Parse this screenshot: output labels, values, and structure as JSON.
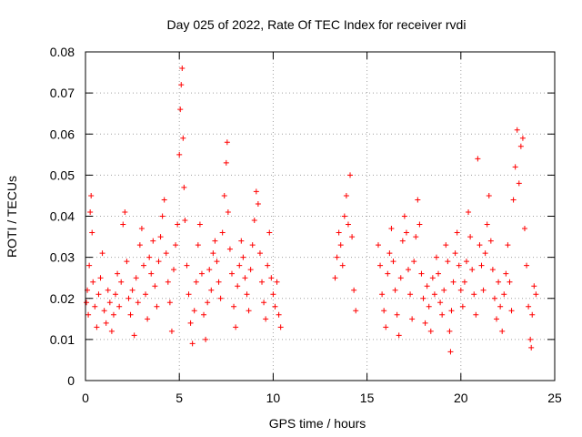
{
  "chart_data": {
    "type": "scatter",
    "title": "Day 025 of 2022, Rate Of TEC Index for receiver rvdi",
    "xlabel": "GPS time / hours",
    "ylabel": "ROTI / TECUs",
    "xlim": [
      0,
      25
    ],
    "ylim": [
      0,
      0.08
    ],
    "xticks": [
      0,
      5,
      10,
      15,
      20,
      25
    ],
    "yticks": [
      0,
      0.01,
      0.02,
      0.03,
      0.04,
      0.05,
      0.06,
      0.07,
      0.08
    ],
    "xtick_labels": [
      "0",
      "5",
      "10",
      "15",
      "20",
      "25"
    ],
    "ytick_labels": [
      "0",
      "0.01",
      "0.02",
      "0.03",
      "0.04",
      "0.05",
      "0.06",
      "0.07",
      "0.08"
    ],
    "grid": true,
    "marker": "plus",
    "color": "#ff0000",
    "series": [
      {
        "values": [
          [
            0.05,
            0.019
          ],
          [
            0.1,
            0.022
          ],
          [
            0.15,
            0.016
          ],
          [
            0.2,
            0.028
          ],
          [
            0.25,
            0.041
          ],
          [
            0.3,
            0.045
          ],
          [
            0.35,
            0.036
          ],
          [
            0.4,
            0.024
          ],
          [
            0.5,
            0.018
          ],
          [
            0.6,
            0.013
          ],
          [
            0.7,
            0.021
          ],
          [
            0.8,
            0.025
          ],
          [
            0.9,
            0.031
          ],
          [
            1.0,
            0.017
          ],
          [
            1.1,
            0.014
          ],
          [
            1.2,
            0.022
          ],
          [
            1.3,
            0.019
          ],
          [
            1.4,
            0.012
          ],
          [
            1.5,
            0.016
          ],
          [
            1.6,
            0.021
          ],
          [
            1.7,
            0.026
          ],
          [
            1.8,
            0.018
          ],
          [
            1.9,
            0.024
          ],
          [
            2.0,
            0.038
          ],
          [
            2.1,
            0.041
          ],
          [
            2.2,
            0.029
          ],
          [
            2.3,
            0.02
          ],
          [
            2.4,
            0.016
          ],
          [
            2.5,
            0.022
          ],
          [
            2.6,
            0.011
          ],
          [
            2.7,
            0.025
          ],
          [
            2.8,
            0.019
          ],
          [
            2.9,
            0.033
          ],
          [
            3.0,
            0.037
          ],
          [
            3.1,
            0.028
          ],
          [
            3.2,
            0.021
          ],
          [
            3.3,
            0.015
          ],
          [
            3.4,
            0.03
          ],
          [
            3.5,
            0.026
          ],
          [
            3.6,
            0.034
          ],
          [
            3.7,
            0.023
          ],
          [
            3.8,
            0.018
          ],
          [
            3.9,
            0.029
          ],
          [
            4.0,
            0.035
          ],
          [
            4.1,
            0.04
          ],
          [
            4.2,
            0.044
          ],
          [
            4.3,
            0.031
          ],
          [
            4.4,
            0.024
          ],
          [
            4.5,
            0.019
          ],
          [
            4.6,
            0.012
          ],
          [
            4.7,
            0.027
          ],
          [
            4.8,
            0.033
          ],
          [
            4.9,
            0.038
          ],
          [
            5.0,
            0.055
          ],
          [
            5.05,
            0.066
          ],
          [
            5.1,
            0.072
          ],
          [
            5.15,
            0.076
          ],
          [
            5.2,
            0.059
          ],
          [
            5.25,
            0.047
          ],
          [
            5.3,
            0.039
          ],
          [
            5.4,
            0.028
          ],
          [
            5.5,
            0.021
          ],
          [
            5.6,
            0.014
          ],
          [
            5.7,
            0.009
          ],
          [
            5.8,
            0.017
          ],
          [
            5.9,
            0.024
          ],
          [
            6.0,
            0.033
          ],
          [
            6.1,
            0.038
          ],
          [
            6.2,
            0.026
          ],
          [
            6.3,
            0.016
          ],
          [
            6.4,
            0.01
          ],
          [
            6.5,
            0.019
          ],
          [
            6.6,
            0.027
          ],
          [
            6.7,
            0.022
          ],
          [
            6.8,
            0.031
          ],
          [
            6.9,
            0.034
          ],
          [
            7.0,
            0.029
          ],
          [
            7.1,
            0.024
          ],
          [
            7.2,
            0.02
          ],
          [
            7.3,
            0.036
          ],
          [
            7.4,
            0.045
          ],
          [
            7.5,
            0.053
          ],
          [
            7.55,
            0.058
          ],
          [
            7.6,
            0.041
          ],
          [
            7.7,
            0.032
          ],
          [
            7.8,
            0.026
          ],
          [
            7.9,
            0.018
          ],
          [
            8.0,
            0.013
          ],
          [
            8.1,
            0.023
          ],
          [
            8.2,
            0.028
          ],
          [
            8.3,
            0.034
          ],
          [
            8.4,
            0.03
          ],
          [
            8.5,
            0.025
          ],
          [
            8.6,
            0.021
          ],
          [
            8.7,
            0.017
          ],
          [
            8.8,
            0.027
          ],
          [
            8.9,
            0.033
          ],
          [
            9.0,
            0.039
          ],
          [
            9.1,
            0.046
          ],
          [
            9.2,
            0.043
          ],
          [
            9.3,
            0.031
          ],
          [
            9.4,
            0.024
          ],
          [
            9.5,
            0.019
          ],
          [
            9.6,
            0.015
          ],
          [
            9.7,
            0.028
          ],
          [
            9.8,
            0.036
          ],
          [
            9.9,
            0.025
          ],
          [
            10.0,
            0.021
          ],
          [
            10.1,
            0.018
          ],
          [
            10.2,
            0.024
          ],
          [
            10.3,
            0.016
          ],
          [
            10.4,
            0.013
          ],
          [
            13.3,
            0.025
          ],
          [
            13.4,
            0.03
          ],
          [
            13.5,
            0.036
          ],
          [
            13.6,
            0.033
          ],
          [
            13.7,
            0.028
          ],
          [
            13.8,
            0.04
          ],
          [
            13.9,
            0.045
          ],
          [
            14.0,
            0.038
          ],
          [
            14.1,
            0.05
          ],
          [
            14.2,
            0.035
          ],
          [
            14.3,
            0.022
          ],
          [
            14.4,
            0.017
          ],
          [
            15.6,
            0.033
          ],
          [
            15.7,
            0.028
          ],
          [
            15.8,
            0.021
          ],
          [
            15.9,
            0.017
          ],
          [
            16.0,
            0.013
          ],
          [
            16.1,
            0.026
          ],
          [
            16.2,
            0.031
          ],
          [
            16.3,
            0.037
          ],
          [
            16.4,
            0.029
          ],
          [
            16.5,
            0.022
          ],
          [
            16.6,
            0.016
          ],
          [
            16.7,
            0.011
          ],
          [
            16.8,
            0.025
          ],
          [
            16.9,
            0.034
          ],
          [
            17.0,
            0.04
          ],
          [
            17.1,
            0.036
          ],
          [
            17.2,
            0.027
          ],
          [
            17.3,
            0.021
          ],
          [
            17.4,
            0.015
          ],
          [
            17.5,
            0.029
          ],
          [
            17.6,
            0.035
          ],
          [
            17.7,
            0.044
          ],
          [
            17.8,
            0.038
          ],
          [
            17.9,
            0.026
          ],
          [
            18.0,
            0.02
          ],
          [
            18.1,
            0.014
          ],
          [
            18.2,
            0.023
          ],
          [
            18.3,
            0.018
          ],
          [
            18.4,
            0.012
          ],
          [
            18.5,
            0.025
          ],
          [
            18.6,
            0.021
          ],
          [
            18.7,
            0.03
          ],
          [
            18.8,
            0.026
          ],
          [
            18.9,
            0.019
          ],
          [
            19.0,
            0.016
          ],
          [
            19.1,
            0.022
          ],
          [
            19.2,
            0.033
          ],
          [
            19.3,
            0.029
          ],
          [
            19.4,
            0.012
          ],
          [
            19.45,
            0.007
          ],
          [
            19.5,
            0.017
          ],
          [
            19.6,
            0.024
          ],
          [
            19.7,
            0.031
          ],
          [
            19.8,
            0.036
          ],
          [
            19.9,
            0.028
          ],
          [
            20.0,
            0.022
          ],
          [
            20.1,
            0.018
          ],
          [
            20.2,
            0.024
          ],
          [
            20.3,
            0.029
          ],
          [
            20.4,
            0.041
          ],
          [
            20.5,
            0.035
          ],
          [
            20.6,
            0.027
          ],
          [
            20.7,
            0.021
          ],
          [
            20.8,
            0.016
          ],
          [
            20.9,
            0.054
          ],
          [
            21.0,
            0.033
          ],
          [
            21.1,
            0.028
          ],
          [
            21.2,
            0.022
          ],
          [
            21.3,
            0.031
          ],
          [
            21.4,
            0.038
          ],
          [
            21.5,
            0.045
          ],
          [
            21.6,
            0.034
          ],
          [
            21.7,
            0.027
          ],
          [
            21.8,
            0.02
          ],
          [
            21.9,
            0.015
          ],
          [
            22.0,
            0.024
          ],
          [
            22.1,
            0.018
          ],
          [
            22.2,
            0.012
          ],
          [
            22.3,
            0.021
          ],
          [
            22.4,
            0.026
          ],
          [
            22.5,
            0.033
          ],
          [
            22.6,
            0.024
          ],
          [
            22.7,
            0.017
          ],
          [
            22.8,
            0.044
          ],
          [
            22.9,
            0.052
          ],
          [
            23.0,
            0.061
          ],
          [
            23.1,
            0.048
          ],
          [
            23.2,
            0.057
          ],
          [
            23.3,
            0.059
          ],
          [
            23.4,
            0.037
          ],
          [
            23.5,
            0.028
          ],
          [
            23.6,
            0.018
          ],
          [
            23.7,
            0.01
          ],
          [
            23.75,
            0.008
          ],
          [
            23.8,
            0.016
          ],
          [
            23.9,
            0.023
          ],
          [
            24.0,
            0.021
          ]
        ]
      }
    ]
  }
}
